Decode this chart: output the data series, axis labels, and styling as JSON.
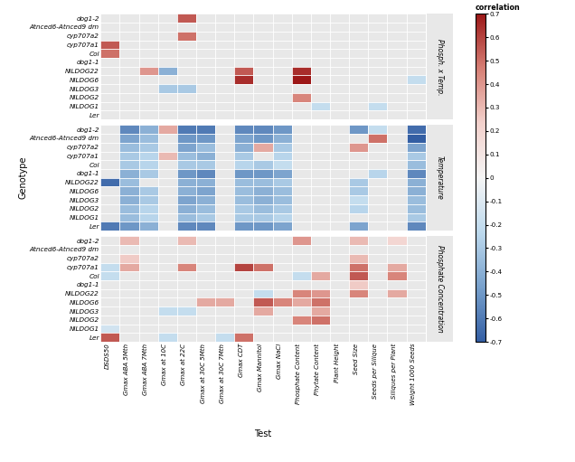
{
  "genotypes": [
    "dog1-2",
    "Atnced6-Atnced9 dm",
    "cyp707a2",
    "cyp707a1",
    "Col",
    "dog1-1",
    "NILDOG22",
    "NILDOG6",
    "NILDOG3",
    "NILDOG2",
    "NILDOG1",
    "Ler"
  ],
  "tests": [
    "DSDS50",
    "Gmax ABA 5Mth",
    "Gmax ABA 7Mth",
    "Gmax at 10C",
    "Gmax at 22C",
    "Gmax at 30C 5Mth",
    "Gmax at 30C 7Mth",
    "Gmax CDT",
    "Gmax Mannitol",
    "Gmax NaCl",
    "Phosphate Content",
    "Phytate Content",
    "Plant Height",
    "Seed Size",
    "Seeds per Silique",
    "Siliques per Plant",
    "Weight 1000 Seeds"
  ],
  "panel_labels": [
    "Phosph. x Temp.",
    "Temperature",
    "Phosphate Concentration"
  ],
  "data_phosph_temp": [
    [
      0.0,
      0.0,
      0.0,
      0.0,
      0.55,
      0.0,
      0.0,
      0.0,
      0.0,
      0.0,
      0.0,
      0.0,
      0.0,
      0.0,
      0.0,
      0.0,
      0.0
    ],
    [
      0.0,
      0.0,
      0.0,
      0.0,
      0.0,
      0.0,
      0.0,
      0.0,
      0.0,
      0.0,
      0.0,
      0.0,
      0.0,
      0.0,
      0.0,
      0.0,
      0.0
    ],
    [
      0.0,
      0.0,
      0.0,
      0.0,
      0.5,
      0.0,
      0.0,
      0.0,
      0.0,
      0.0,
      0.0,
      0.0,
      0.0,
      0.0,
      0.0,
      0.0,
      0.0
    ],
    [
      0.55,
      0.0,
      0.0,
      0.0,
      0.0,
      0.0,
      0.0,
      0.0,
      0.0,
      0.0,
      0.0,
      0.0,
      0.0,
      0.0,
      0.0,
      0.0,
      0.0
    ],
    [
      0.5,
      0.0,
      0.0,
      0.0,
      0.0,
      0.0,
      0.0,
      0.0,
      0.0,
      0.0,
      0.0,
      0.0,
      0.0,
      0.0,
      0.0,
      0.0,
      0.0
    ],
    [
      0.0,
      0.0,
      0.0,
      0.0,
      0.0,
      0.0,
      0.0,
      0.0,
      0.0,
      0.0,
      0.0,
      0.0,
      0.0,
      0.0,
      0.0,
      0.0,
      0.0
    ],
    [
      0.0,
      0.0,
      0.4,
      -0.4,
      0.0,
      0.0,
      0.0,
      0.55,
      0.0,
      0.0,
      0.65,
      0.0,
      0.0,
      0.0,
      0.0,
      0.0,
      0.0
    ],
    [
      0.0,
      0.0,
      0.0,
      0.0,
      0.0,
      0.0,
      0.0,
      0.65,
      0.0,
      0.0,
      0.75,
      0.0,
      0.0,
      0.0,
      0.0,
      0.0,
      -0.2
    ],
    [
      0.0,
      0.0,
      0.0,
      -0.3,
      -0.3,
      0.0,
      0.0,
      0.0,
      0.0,
      0.0,
      0.0,
      0.0,
      0.0,
      0.0,
      0.0,
      0.0,
      0.0
    ],
    [
      0.0,
      0.0,
      0.0,
      0.0,
      0.0,
      0.0,
      0.0,
      0.0,
      0.0,
      0.0,
      0.45,
      0.0,
      0.0,
      0.0,
      0.0,
      0.0,
      0.0
    ],
    [
      0.0,
      0.0,
      0.0,
      0.0,
      0.0,
      0.0,
      0.0,
      0.0,
      0.0,
      0.0,
      0.0,
      -0.2,
      0.0,
      0.0,
      -0.2,
      0.0,
      0.0
    ],
    [
      0.0,
      0.0,
      0.0,
      0.0,
      0.0,
      0.0,
      0.0,
      0.0,
      0.0,
      0.0,
      0.0,
      0.0,
      0.0,
      0.0,
      0.0,
      0.0,
      0.0
    ]
  ],
  "data_temperature": [
    [
      0.0,
      -0.55,
      -0.4,
      0.35,
      -0.6,
      -0.6,
      0.0,
      -0.55,
      -0.55,
      -0.5,
      0.0,
      0.0,
      0.0,
      -0.5,
      -0.2,
      0.0,
      -0.65
    ],
    [
      0.0,
      -0.45,
      -0.35,
      0.0,
      -0.5,
      -0.5,
      0.0,
      -0.45,
      -0.5,
      -0.4,
      0.0,
      0.0,
      0.0,
      0.0,
      0.5,
      0.0,
      -0.7
    ],
    [
      0.0,
      -0.35,
      -0.3,
      0.0,
      -0.45,
      -0.35,
      0.0,
      -0.4,
      0.35,
      -0.3,
      0.0,
      0.0,
      0.0,
      0.4,
      0.0,
      0.0,
      -0.45
    ],
    [
      0.0,
      -0.3,
      -0.25,
      0.3,
      -0.35,
      -0.4,
      0.0,
      -0.3,
      0.0,
      -0.25,
      0.0,
      0.0,
      0.0,
      0.0,
      0.0,
      0.0,
      -0.3
    ],
    [
      0.0,
      -0.3,
      -0.25,
      0.0,
      -0.3,
      -0.3,
      0.0,
      -0.25,
      -0.3,
      -0.2,
      0.0,
      0.0,
      0.0,
      0.0,
      0.0,
      0.0,
      -0.35
    ],
    [
      0.0,
      -0.4,
      -0.3,
      0.0,
      -0.5,
      -0.55,
      0.0,
      -0.5,
      -0.5,
      -0.45,
      0.0,
      0.0,
      0.0,
      0.0,
      -0.25,
      0.0,
      -0.55
    ],
    [
      -0.65,
      -0.35,
      0.0,
      0.0,
      -0.4,
      -0.4,
      0.0,
      -0.35,
      -0.35,
      -0.3,
      0.0,
      0.0,
      0.0,
      -0.3,
      0.0,
      0.0,
      -0.4
    ],
    [
      0.0,
      -0.4,
      -0.3,
      0.0,
      -0.4,
      -0.45,
      0.0,
      -0.35,
      -0.4,
      -0.35,
      0.0,
      0.0,
      0.0,
      -0.3,
      0.0,
      0.0,
      -0.4
    ],
    [
      0.0,
      -0.4,
      -0.3,
      0.0,
      -0.45,
      -0.4,
      0.0,
      -0.35,
      -0.4,
      -0.35,
      0.0,
      0.0,
      0.0,
      -0.2,
      0.0,
      0.0,
      -0.35
    ],
    [
      0.0,
      -0.35,
      -0.25,
      0.0,
      -0.4,
      -0.35,
      0.0,
      -0.3,
      -0.35,
      -0.3,
      0.0,
      0.0,
      0.0,
      -0.25,
      0.0,
      0.0,
      -0.35
    ],
    [
      0.0,
      -0.35,
      -0.25,
      0.0,
      -0.35,
      -0.3,
      0.0,
      -0.3,
      -0.3,
      -0.25,
      0.0,
      0.0,
      0.0,
      0.0,
      0.0,
      0.0,
      -0.3
    ],
    [
      -0.6,
      -0.5,
      -0.4,
      0.0,
      -0.55,
      -0.55,
      0.0,
      -0.5,
      -0.5,
      -0.45,
      0.0,
      0.0,
      0.0,
      -0.45,
      0.0,
      0.0,
      -0.55
    ]
  ],
  "data_phosphate": [
    [
      0.0,
      0.3,
      0.0,
      0.0,
      0.3,
      0.0,
      0.0,
      0.0,
      0.0,
      0.0,
      0.4,
      0.0,
      0.0,
      0.3,
      0.0,
      0.2,
      0.0
    ],
    [
      0.0,
      0.0,
      0.0,
      0.0,
      0.0,
      0.0,
      0.0,
      0.0,
      0.0,
      0.0,
      0.0,
      0.0,
      0.0,
      0.0,
      0.0,
      0.0,
      0.0
    ],
    [
      0.0,
      0.25,
      0.0,
      0.0,
      0.0,
      0.0,
      0.0,
      0.0,
      0.0,
      0.0,
      0.0,
      0.0,
      0.0,
      0.3,
      0.0,
      0.0,
      0.0
    ],
    [
      -0.2,
      0.35,
      0.0,
      0.0,
      0.45,
      0.0,
      0.0,
      0.6,
      0.5,
      0.0,
      0.0,
      0.0,
      0.0,
      0.5,
      0.0,
      0.35,
      0.0
    ],
    [
      -0.2,
      0.0,
      0.0,
      0.0,
      0.0,
      0.0,
      0.0,
      0.0,
      0.0,
      0.0,
      -0.2,
      0.35,
      0.0,
      0.55,
      0.0,
      0.45,
      0.0
    ],
    [
      0.0,
      0.0,
      0.0,
      0.0,
      0.0,
      0.0,
      0.0,
      0.0,
      0.0,
      0.0,
      0.0,
      0.0,
      0.0,
      0.25,
      0.0,
      0.0,
      0.0
    ],
    [
      0.0,
      0.0,
      0.0,
      0.0,
      0.0,
      0.0,
      0.0,
      0.0,
      -0.2,
      0.0,
      0.45,
      0.4,
      0.0,
      0.45,
      0.0,
      0.35,
      0.0
    ],
    [
      0.0,
      0.0,
      0.0,
      0.0,
      0.0,
      0.35,
      0.35,
      0.0,
      0.55,
      0.45,
      0.35,
      0.5,
      0.0,
      0.0,
      0.0,
      0.0,
      0.0
    ],
    [
      0.0,
      0.0,
      0.0,
      -0.2,
      -0.2,
      0.0,
      0.0,
      0.0,
      0.35,
      0.0,
      0.0,
      0.35,
      0.0,
      0.0,
      0.0,
      0.0,
      0.0
    ],
    [
      0.0,
      0.0,
      0.0,
      0.0,
      0.0,
      0.0,
      0.0,
      0.0,
      0.0,
      0.0,
      0.45,
      0.5,
      0.0,
      0.0,
      0.0,
      0.0,
      0.0
    ],
    [
      -0.15,
      0.0,
      0.0,
      0.0,
      0.0,
      0.0,
      0.0,
      0.0,
      0.0,
      0.0,
      0.0,
      0.0,
      0.0,
      0.0,
      0.0,
      0.0,
      0.0
    ],
    [
      0.55,
      0.0,
      0.0,
      -0.2,
      0.0,
      0.0,
      -0.2,
      0.5,
      0.0,
      0.0,
      0.0,
      0.0,
      0.0,
      0.0,
      0.0,
      0.0,
      0.0
    ]
  ],
  "vmin": -0.7,
  "vmax": 0.7,
  "colorbar_ticks": [
    -0.7,
    -0.6,
    -0.5,
    -0.4,
    -0.3,
    -0.2,
    -0.1,
    0,
    0.1,
    0.2,
    0.3,
    0.4,
    0.5,
    0.6,
    0.7
  ],
  "panel_bg": "#e8e8e8",
  "fig_bg": "#ffffff",
  "xlabel": "Test",
  "ylabel": "Genotype"
}
